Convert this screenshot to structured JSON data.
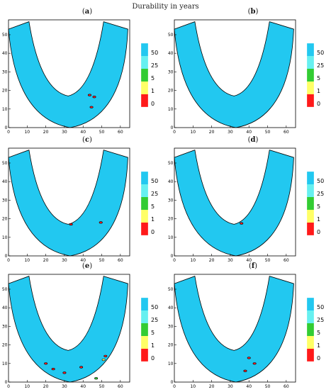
{
  "title": "Durability in years",
  "colors": {
    "c0": "#ff1a1a",
    "c1": "#ffff66",
    "c5": "#33cc33",
    "c25": "#66f0f0",
    "c50": "#22c8f0",
    "outline": "#000000"
  },
  "chart_data": [
    {
      "label": "a",
      "type": "heatmap",
      "xlim": [
        0,
        65
      ],
      "ylim": [
        0,
        58
      ],
      "x_ticks": [
        "0",
        "10",
        "20",
        "30",
        "40",
        "50",
        "60"
      ],
      "y_ticks": [
        "0",
        "10",
        "20",
        "30",
        "40",
        "50"
      ],
      "legend": {
        "levels": [
          "50",
          "25",
          "5",
          "1",
          "0"
        ]
      },
      "defects": [
        {
          "x": 43.5,
          "y": 17.5,
          "level": "0"
        },
        {
          "x": 46,
          "y": 16.5,
          "level": "0"
        },
        {
          "x": 44.5,
          "y": 11,
          "level": "0"
        }
      ]
    },
    {
      "label": "b",
      "type": "heatmap",
      "xlim": [
        0,
        65
      ],
      "ylim": [
        0,
        58
      ],
      "x_ticks": [
        "0",
        "10",
        "20",
        "30",
        "40",
        "50",
        "60"
      ],
      "y_ticks": [
        "0",
        "10",
        "20",
        "30",
        "40",
        "50"
      ],
      "legend": {
        "levels": [
          "50",
          "25",
          "5",
          "1",
          "0"
        ]
      },
      "defects": []
    },
    {
      "label": "c",
      "type": "heatmap",
      "xlim": [
        0,
        65
      ],
      "ylim": [
        0,
        58
      ],
      "x_ticks": [
        "0",
        "10",
        "20",
        "30",
        "40",
        "50",
        "60"
      ],
      "y_ticks": [
        "0",
        "10",
        "20",
        "30",
        "40",
        "50"
      ],
      "legend": {
        "levels": [
          "50",
          "25",
          "5",
          "1",
          "0"
        ]
      },
      "defects": [
        {
          "x": 33.5,
          "y": 17,
          "level": "0"
        },
        {
          "x": 49.5,
          "y": 18,
          "level": "0"
        }
      ]
    },
    {
      "label": "d",
      "type": "heatmap",
      "xlim": [
        0,
        65
      ],
      "ylim": [
        0,
        58
      ],
      "x_ticks": [
        "0",
        "10",
        "20",
        "30",
        "40",
        "50",
        "60"
      ],
      "y_ticks": [
        "0",
        "10",
        "20",
        "30",
        "40",
        "50"
      ],
      "legend": {
        "levels": [
          "50",
          "25",
          "5",
          "1",
          "0"
        ]
      },
      "defects": [
        {
          "x": 36,
          "y": 17.5,
          "level": "0"
        }
      ]
    },
    {
      "label": "e",
      "type": "heatmap",
      "xlim": [
        0,
        65
      ],
      "ylim": [
        0,
        58
      ],
      "x_ticks": [
        "0",
        "10",
        "20",
        "30",
        "40",
        "50",
        "60"
      ],
      "y_ticks": [
        "0",
        "10",
        "20",
        "30",
        "40",
        "50"
      ],
      "legend": {
        "levels": [
          "50",
          "25",
          "5",
          "1",
          "0"
        ]
      },
      "defects": [
        {
          "x": 52,
          "y": 14,
          "level": "0"
        },
        {
          "x": 51,
          "y": 12,
          "level": "1"
        },
        {
          "x": 47,
          "y": 2,
          "level": "5"
        },
        {
          "x": 20,
          "y": 10,
          "level": "0"
        },
        {
          "x": 24,
          "y": 7,
          "level": "0"
        },
        {
          "x": 30,
          "y": 5,
          "level": "0"
        },
        {
          "x": 39,
          "y": 8,
          "level": "0"
        }
      ]
    },
    {
      "label": "f",
      "type": "heatmap",
      "xlim": [
        0,
        65
      ],
      "ylim": [
        0,
        58
      ],
      "x_ticks": [
        "0",
        "10",
        "20",
        "30",
        "40",
        "50",
        "60"
      ],
      "y_ticks": [
        "0",
        "10",
        "20",
        "30",
        "40",
        "50"
      ],
      "legend": {
        "levels": [
          "50",
          "25",
          "5",
          "1",
          "0"
        ]
      },
      "defects": [
        {
          "x": 40,
          "y": 13,
          "level": "0"
        },
        {
          "x": 43,
          "y": 10,
          "level": "0"
        },
        {
          "x": 38,
          "y": 6,
          "level": "0"
        }
      ]
    }
  ]
}
